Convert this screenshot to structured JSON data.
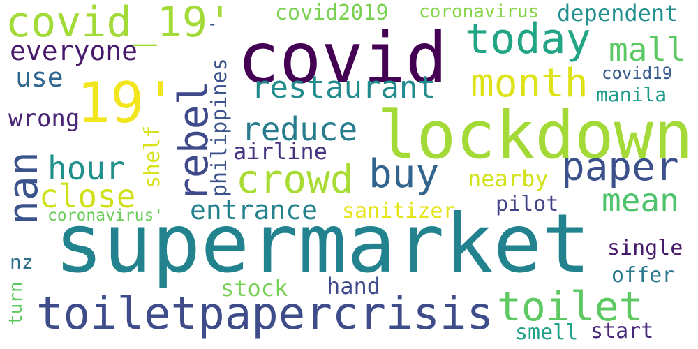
{
  "words": [
    {
      "text": "supermarket",
      "color": "#22838e"
    },
    {
      "text": "lockdown",
      "color": "#a3da37"
    },
    {
      "text": "covid",
      "color": "#440154"
    },
    {
      "text": "toiletpapercrisis",
      "color": "#3e4c8a"
    },
    {
      "text": "19'",
      "color": "#f1e51d"
    },
    {
      "text": "covid_19'",
      "color": "#a2da37"
    },
    {
      "text": "nan",
      "color": "#3a538b"
    },
    {
      "text": "rebel",
      "color": "#3e4a89"
    },
    {
      "text": "today",
      "color": "#21a585"
    },
    {
      "text": "paper",
      "color": "#3b518b"
    },
    {
      "text": "toilet",
      "color": "#5ec962"
    },
    {
      "text": "month",
      "color": "#dde318"
    },
    {
      "text": "restaurant",
      "color": "#228b8d"
    },
    {
      "text": "buy",
      "color": "#32648e"
    },
    {
      "text": "crowd",
      "color": "#a8db34"
    },
    {
      "text": "close",
      "color": "#d0e11c"
    },
    {
      "text": "hour",
      "color": "#21918c"
    },
    {
      "text": "reduce",
      "color": "#287c8e"
    },
    {
      "text": "mall",
      "color": "#5cc863"
    },
    {
      "text": "mean",
      "color": "#4ec36b"
    },
    {
      "text": "entrance",
      "color": "#26828e"
    },
    {
      "text": "everyone",
      "color": "#48196b"
    },
    {
      "text": "use",
      "color": "#31668e"
    },
    {
      "text": "wrong",
      "color": "#482475"
    },
    {
      "text": "airline",
      "color": "#46327e"
    },
    {
      "text": "philippines",
      "color": "#3b528b"
    },
    {
      "text": "shelf",
      "color": "#d8e219"
    },
    {
      "text": "covid2019",
      "color": "#7ad151"
    },
    {
      "text": "coronavirus",
      "color": "#86d549"
    },
    {
      "text": "dependent",
      "color": "#218f8d"
    },
    {
      "text": "covid19",
      "color": "#365c8d"
    },
    {
      "text": "manila",
      "color": "#1e9c89"
    },
    {
      "text": "nearby",
      "color": "#d2e21b"
    },
    {
      "text": "pilot",
      "color": "#414487"
    },
    {
      "text": "sanitizer",
      "color": "#e5e419"
    },
    {
      "text": "coronavirus'",
      "color": "#6ccd5a"
    },
    {
      "text": "single",
      "color": "#481a6c"
    },
    {
      "text": "offer",
      "color": "#2a788e"
    },
    {
      "text": "nz",
      "color": "#2c718e"
    },
    {
      "text": "stock",
      "color": "#75d054"
    },
    {
      "text": "hand",
      "color": "#3e4989"
    },
    {
      "text": "turn",
      "color": "#5ec962"
    },
    {
      "text": "smell",
      "color": "#1fa088"
    },
    {
      "text": "start",
      "color": "#482878"
    },
    {
      "text": "-",
      "color": "#3b528b"
    }
  ]
}
